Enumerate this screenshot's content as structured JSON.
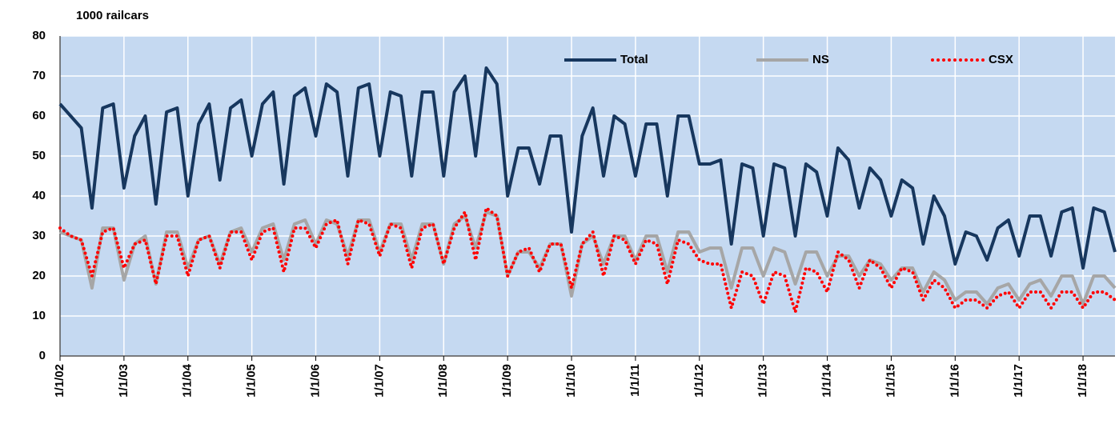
{
  "chart_data": {
    "type": "line",
    "y_label": "1000 railcars",
    "x": [
      "1/1/02",
      "3/1/02",
      "5/1/02",
      "7/1/02",
      "9/1/02",
      "11/1/02",
      "1/1/03",
      "3/1/03",
      "5/1/03",
      "7/1/03",
      "9/1/03",
      "11/1/03",
      "1/1/04",
      "3/1/04",
      "5/1/04",
      "7/1/04",
      "9/1/04",
      "11/1/04",
      "1/1/05",
      "3/1/05",
      "5/1/05",
      "7/1/05",
      "9/1/05",
      "11/1/05",
      "1/1/06",
      "3/1/06",
      "5/1/06",
      "7/1/06",
      "9/1/06",
      "11/1/06",
      "1/1/07",
      "3/1/07",
      "5/1/07",
      "7/1/07",
      "9/1/07",
      "11/1/07",
      "1/1/08",
      "3/1/08",
      "5/1/08",
      "7/1/08",
      "9/1/08",
      "11/1/08",
      "1/1/09",
      "3/1/09",
      "5/1/09",
      "7/1/09",
      "9/1/09",
      "11/1/09",
      "1/1/10",
      "3/1/10",
      "5/1/10",
      "7/1/10",
      "9/1/10",
      "11/1/10",
      "1/1/11",
      "3/1/11",
      "5/1/11",
      "7/1/11",
      "9/1/11",
      "11/1/11",
      "1/1/12",
      "3/1/12",
      "5/1/12",
      "7/1/12",
      "9/1/12",
      "11/1/12",
      "1/1/13",
      "3/1/13",
      "5/1/13",
      "7/1/13",
      "9/1/13",
      "11/1/13",
      "1/1/14",
      "3/1/14",
      "5/1/14",
      "7/1/14",
      "9/1/14",
      "11/1/14",
      "1/1/15",
      "3/1/15",
      "5/1/15",
      "7/1/15",
      "9/1/15",
      "11/1/15",
      "1/1/16",
      "3/1/16",
      "5/1/16",
      "7/1/16",
      "9/1/16",
      "11/1/16",
      "1/1/17",
      "3/1/17",
      "5/1/17",
      "7/1/17",
      "9/1/17",
      "11/1/17",
      "1/1/18",
      "3/1/18",
      "5/1/18",
      "7/1/18"
    ],
    "series": [
      {
        "name": "Total",
        "color": "#17375e",
        "style": "solid",
        "width": 4,
        "values": [
          63,
          60,
          57,
          37,
          62,
          63,
          42,
          55,
          60,
          38,
          61,
          62,
          40,
          58,
          63,
          44,
          62,
          64,
          50,
          63,
          66,
          43,
          65,
          67,
          55,
          68,
          66,
          45,
          67,
          68,
          50,
          66,
          65,
          45,
          66,
          66,
          45,
          66,
          70,
          50,
          72,
          68,
          40,
          52,
          52,
          43,
          55,
          55,
          31,
          55,
          62,
          45,
          60,
          58,
          45,
          58,
          58,
          40,
          60,
          60,
          48,
          48,
          49,
          28,
          48,
          47,
          30,
          48,
          47,
          30,
          48,
          46,
          35,
          52,
          49,
          37,
          47,
          44,
          35,
          44,
          42,
          28,
          40,
          35,
          23,
          31,
          30,
          24,
          32,
          34,
          25,
          35,
          35,
          25,
          36,
          37,
          22,
          37,
          36,
          26
        ]
      },
      {
        "name": "NS",
        "color": "#a6a6a6",
        "style": "solid",
        "width": 4,
        "values": [
          31,
          30,
          29,
          17,
          32,
          32,
          19,
          28,
          30,
          18,
          31,
          31,
          22,
          29,
          30,
          23,
          31,
          32,
          26,
          32,
          33,
          24,
          33,
          34,
          28,
          34,
          33,
          25,
          34,
          34,
          26,
          33,
          33,
          24,
          33,
          33,
          23,
          33,
          35,
          27,
          36,
          35,
          20,
          26,
          26,
          22,
          28,
          28,
          15,
          28,
          30,
          23,
          30,
          30,
          24,
          30,
          30,
          21,
          31,
          31,
          26,
          27,
          27,
          17,
          27,
          27,
          20,
          27,
          26,
          18,
          26,
          26,
          20,
          25,
          25,
          20,
          24,
          23,
          19,
          22,
          22,
          16,
          21,
          19,
          14,
          16,
          16,
          13,
          17,
          18,
          14,
          18,
          19,
          15,
          20,
          20,
          13,
          20,
          20,
          17
        ]
      },
      {
        "name": "CSX",
        "color": "#ff0000",
        "style": "dotted",
        "width": 4,
        "values": [
          32,
          30,
          29,
          20,
          31,
          32,
          22,
          28,
          29,
          18,
          30,
          30,
          20,
          29,
          30,
          22,
          31,
          31,
          24,
          31,
          32,
          21,
          32,
          32,
          27,
          33,
          34,
          23,
          34,
          33,
          25,
          33,
          32,
          22,
          32,
          33,
          23,
          32,
          36,
          24,
          37,
          35,
          20,
          26,
          27,
          21,
          28,
          28,
          17,
          28,
          31,
          20,
          30,
          29,
          23,
          29,
          28,
          18,
          29,
          28,
          24,
          23,
          23,
          12,
          21,
          20,
          13,
          21,
          20,
          11,
          22,
          21,
          16,
          26,
          24,
          17,
          24,
          22,
          17,
          22,
          21,
          14,
          19,
          17,
          12,
          14,
          14,
          12,
          15,
          16,
          12,
          16,
          16,
          12,
          16,
          16,
          12,
          16,
          16,
          14
        ]
      }
    ],
    "xlim": [
      "1/1/02",
      "7/1/18"
    ],
    "xticks": [
      "1/1/02",
      "1/1/03",
      "1/1/04",
      "1/1/05",
      "1/1/06",
      "1/1/07",
      "1/1/08",
      "1/1/09",
      "1/1/10",
      "1/1/11",
      "1/1/12",
      "1/1/13",
      "1/1/14",
      "1/1/15",
      "1/1/16",
      "1/1/17",
      "1/1/18"
    ],
    "ylim": [
      0,
      80
    ],
    "yticks": [
      0,
      10,
      20,
      30,
      40,
      50,
      60,
      70,
      80
    ],
    "grid": true,
    "background": "#c5d9f1",
    "legend": "top"
  }
}
